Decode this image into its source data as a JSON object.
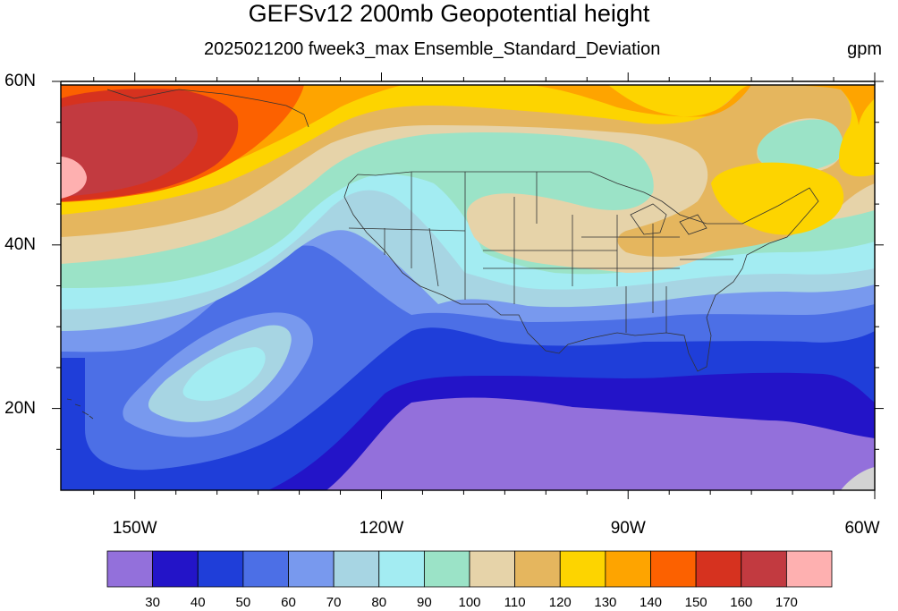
{
  "title": "GEFSv12 200mb Geopotential height",
  "subtitle": "2025021200 fweek3_max Ensemble_Standard_Deviation",
  "units": "gpm",
  "lat_labels": [
    {
      "value": 60,
      "text": "60N"
    },
    {
      "value": 40,
      "text": "40N"
    },
    {
      "value": 20,
      "text": "20N"
    }
  ],
  "lon_labels": [
    {
      "value": -150,
      "text": "150W"
    },
    {
      "value": -120,
      "text": "120W"
    },
    {
      "value": -90,
      "text": "90W"
    },
    {
      "value": -60,
      "text": "60W"
    }
  ],
  "legend": {
    "colors": [
      "#9370db",
      "#2314c8",
      "#1f3ed9",
      "#4c6fe6",
      "#7899ee",
      "#a7d5e3",
      "#a3ecf2",
      "#9be3c7",
      "#e6d3a9",
      "#e5b65e",
      "#fdd400",
      "#fea400",
      "#fc6100",
      "#d6321f",
      "#c23a40",
      "#feb0b0"
    ],
    "labels": [
      "30",
      "40",
      "50",
      "60",
      "70",
      "80",
      "90",
      "100",
      "110",
      "120",
      "130",
      "140",
      "150",
      "160",
      "170"
    ]
  },
  "map_extent": {
    "lon_min": -159,
    "lon_max": -60,
    "lat_min": 10,
    "lat_max": 60
  },
  "states": true
}
